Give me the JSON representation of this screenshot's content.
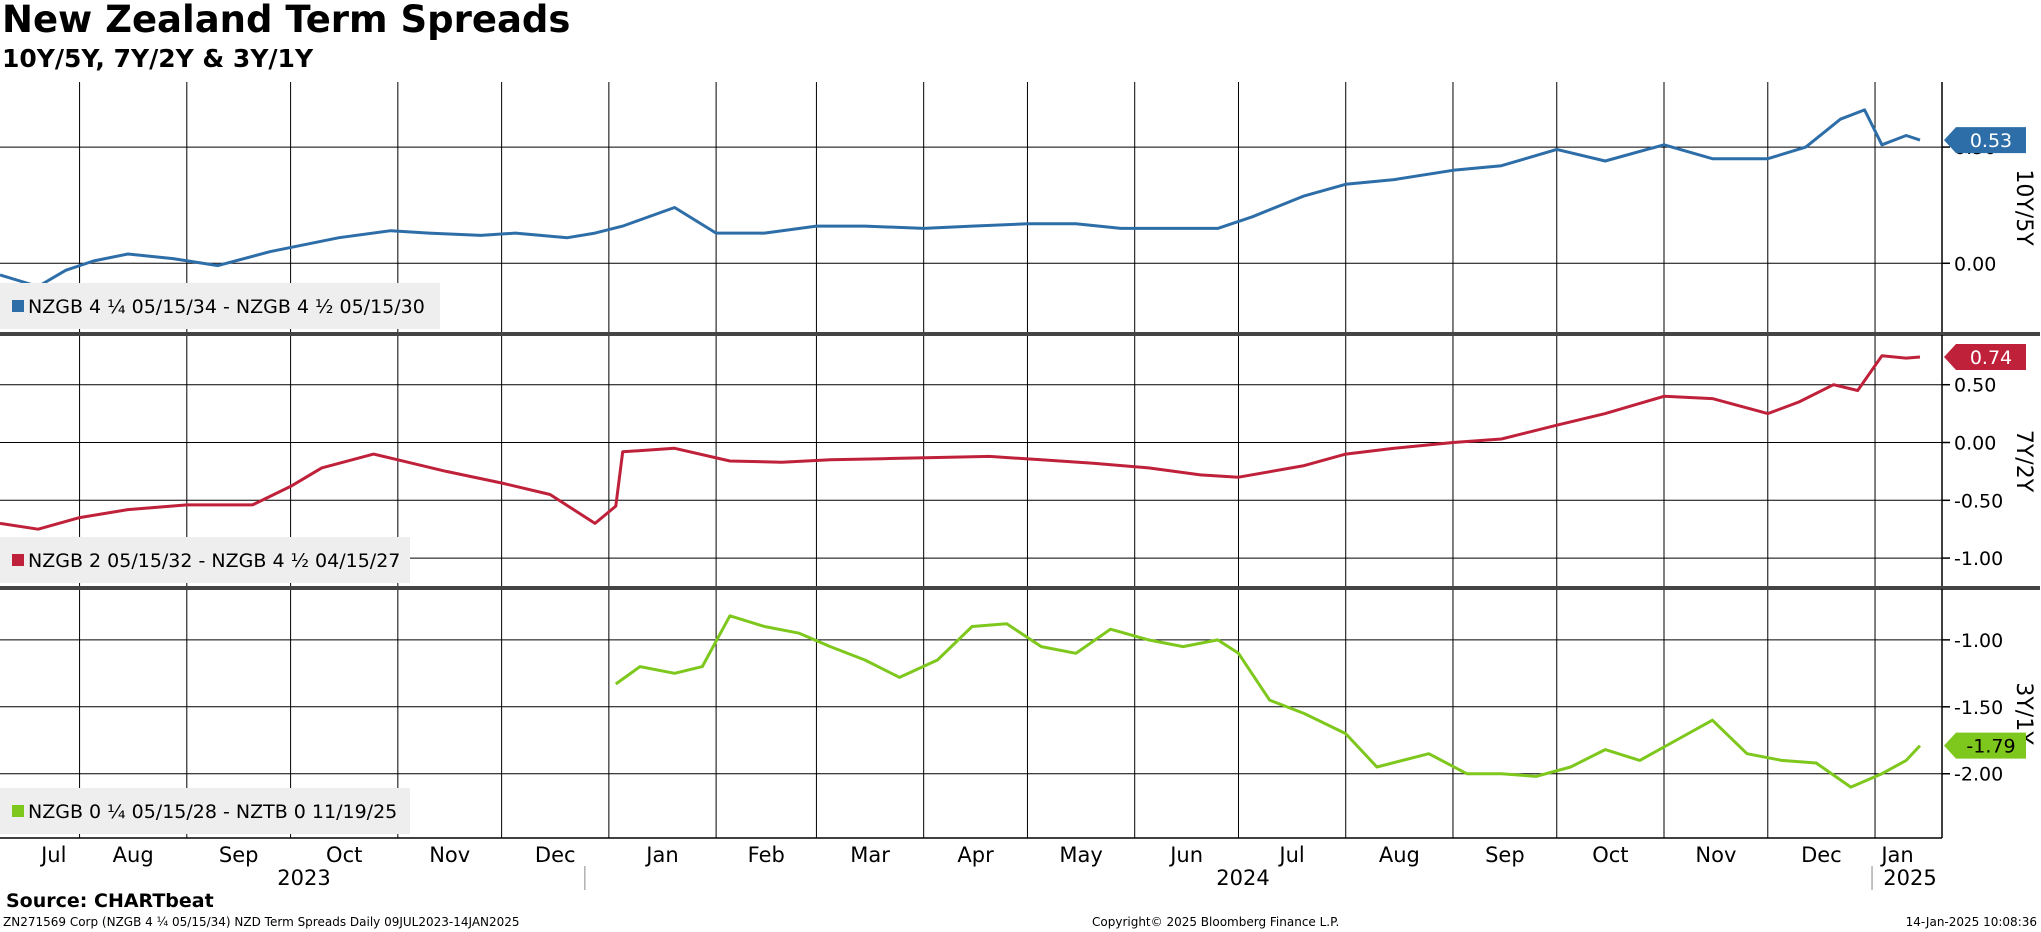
{
  "title": "New Zealand Term Spreads",
  "subtitle": "10Y/5Y, 7Y/2Y & 3Y/1Y",
  "source": "Source: CHARTbeat",
  "footer": {
    "left": "ZN271569 Corp (NZGB 4 ¼ 05/15/34) NZD Term Spreads  Daily 09JUL2023-14JAN2025",
    "center": "Copyright© 2025 Bloomberg Finance L.P.",
    "right": "14-Jan-2025 10:08:36"
  },
  "x_axis": {
    "month_labels": [
      "Jul",
      "Aug",
      "Sep",
      "Oct",
      "Nov",
      "Dec",
      "Jan",
      "Feb",
      "Mar",
      "Apr",
      "May",
      "Jun",
      "Jul",
      "Aug",
      "Sep",
      "Oct",
      "Nov",
      "Dec",
      "Jan"
    ],
    "year_labels": [
      "2023",
      "2024",
      "2025"
    ]
  },
  "chart_data": [
    {
      "type": "line",
      "panel_label": "10Y/5Y",
      "legend": "NZGB 4 ¼ 05/15/34 - NZGB 4 ½ 05/15/30",
      "color": "#2e6ea8",
      "last_value_label": "0.53",
      "y_ticks": [
        "0.00",
        "0.50"
      ],
      "ylim": [
        -0.3,
        0.78
      ],
      "series": [
        {
          "name": "NZGB 4 ¼ 05/15/34 - NZGB 4 ½ 05/15/30",
          "x": [
            "2023-07-09",
            "2023-07-20",
            "2023-07-28",
            "2023-08-05",
            "2023-08-15",
            "2023-08-28",
            "2023-09-10",
            "2023-09-25",
            "2023-10-05",
            "2023-10-15",
            "2023-10-30",
            "2023-11-10",
            "2023-11-25",
            "2023-12-05",
            "2023-12-20",
            "2023-12-28",
            "2024-01-05",
            "2024-01-20",
            "2024-02-01",
            "2024-02-15",
            "2024-03-01",
            "2024-03-15",
            "2024-04-01",
            "2024-04-15",
            "2024-05-01",
            "2024-05-15",
            "2024-05-28",
            "2024-06-10",
            "2024-06-25",
            "2024-07-05",
            "2024-07-20",
            "2024-08-01",
            "2024-08-15",
            "2024-09-01",
            "2024-09-15",
            "2024-10-01",
            "2024-10-15",
            "2024-11-01",
            "2024-11-15",
            "2024-12-01",
            "2024-12-12",
            "2024-12-22",
            "2024-12-29",
            "2025-01-03",
            "2025-01-10",
            "2025-01-14"
          ],
          "values": [
            -0.05,
            -0.1,
            -0.03,
            0.01,
            0.04,
            0.02,
            -0.01,
            0.05,
            0.08,
            0.11,
            0.14,
            0.13,
            0.12,
            0.13,
            0.11,
            0.13,
            0.16,
            0.24,
            0.13,
            0.13,
            0.16,
            0.16,
            0.15,
            0.16,
            0.17,
            0.17,
            0.15,
            0.15,
            0.15,
            0.2,
            0.29,
            0.34,
            0.36,
            0.4,
            0.42,
            0.49,
            0.44,
            0.51,
            0.45,
            0.45,
            0.5,
            0.62,
            0.66,
            0.51,
            0.55,
            0.53
          ]
        }
      ]
    },
    {
      "type": "line",
      "panel_label": "7Y/2Y",
      "legend": "NZGB 2 05/15/32 - NZGB 4 ½ 04/15/27",
      "color": "#c0213a",
      "last_value_label": "0.74",
      "y_ticks": [
        "0.50",
        "0.00",
        "-0.50",
        "-1.00"
      ],
      "ylim": [
        -1.25,
        0.93
      ],
      "series": [
        {
          "name": "NZGB 2 05/15/32 - NZGB 4 ½ 04/15/27",
          "x": [
            "2023-07-09",
            "2023-07-20",
            "2023-08-01",
            "2023-08-15",
            "2023-09-01",
            "2023-09-20",
            "2023-10-01",
            "2023-10-10",
            "2023-10-25",
            "2023-11-01",
            "2023-11-15",
            "2023-12-01",
            "2023-12-15",
            "2023-12-28",
            "2024-01-03",
            "2024-01-05",
            "2024-01-20",
            "2024-02-05",
            "2024-02-20",
            "2024-03-05",
            "2024-03-20",
            "2024-04-05",
            "2024-04-20",
            "2024-05-05",
            "2024-05-20",
            "2024-06-05",
            "2024-06-20",
            "2024-07-01",
            "2024-07-20",
            "2024-08-01",
            "2024-08-15",
            "2024-09-01",
            "2024-09-15",
            "2024-10-01",
            "2024-10-15",
            "2024-11-01",
            "2024-11-15",
            "2024-12-01",
            "2024-12-10",
            "2024-12-20",
            "2024-12-27",
            "2025-01-03",
            "2025-01-10",
            "2025-01-14"
          ],
          "values": [
            -0.7,
            -0.75,
            -0.65,
            -0.58,
            -0.54,
            -0.54,
            -0.38,
            -0.22,
            -0.1,
            -0.15,
            -0.25,
            -0.35,
            -0.45,
            -0.7,
            -0.55,
            -0.08,
            -0.05,
            -0.16,
            -0.17,
            -0.15,
            -0.14,
            -0.13,
            -0.12,
            -0.15,
            -0.18,
            -0.22,
            -0.28,
            -0.3,
            -0.2,
            -0.1,
            -0.05,
            0.0,
            0.03,
            0.15,
            0.25,
            0.4,
            0.38,
            0.25,
            0.35,
            0.5,
            0.45,
            0.75,
            0.73,
            0.74
          ]
        }
      ]
    },
    {
      "type": "line",
      "panel_label": "3Y/1Y",
      "legend": "NZGB 0 ¼ 05/15/28 - NZTB 0 11/19/25",
      "color": "#7ec81e",
      "last_value_label": "-1.79",
      "y_ticks": [
        "-1.00",
        "-1.50",
        "-2.00"
      ],
      "ylim": [
        -2.48,
        -0.62
      ],
      "series": [
        {
          "name": "NZGB 0 ¼ 05/15/28 - NZTB 0 11/19/25",
          "x": [
            "2024-01-03",
            "2024-01-10",
            "2024-01-20",
            "2024-01-28",
            "2024-02-05",
            "2024-02-15",
            "2024-02-25",
            "2024-03-05",
            "2024-03-15",
            "2024-03-25",
            "2024-04-05",
            "2024-04-15",
            "2024-04-25",
            "2024-05-05",
            "2024-05-15",
            "2024-05-25",
            "2024-06-05",
            "2024-06-15",
            "2024-06-25",
            "2024-07-01",
            "2024-07-10",
            "2024-07-20",
            "2024-08-01",
            "2024-08-10",
            "2024-08-25",
            "2024-09-05",
            "2024-09-15",
            "2024-09-25",
            "2024-10-05",
            "2024-10-15",
            "2024-10-25",
            "2024-11-01",
            "2024-11-15",
            "2024-11-25",
            "2024-12-05",
            "2024-12-15",
            "2024-12-25",
            "2025-01-03",
            "2025-01-10",
            "2025-01-14"
          ],
          "values": [
            -1.33,
            -1.2,
            -1.25,
            -1.2,
            -0.82,
            -0.9,
            -0.95,
            -1.05,
            -1.15,
            -1.28,
            -1.15,
            -0.9,
            -0.88,
            -1.05,
            -1.1,
            -0.92,
            -1.0,
            -1.05,
            -1.0,
            -1.1,
            -1.45,
            -1.55,
            -1.7,
            -1.95,
            -1.85,
            -2.0,
            -2.0,
            -2.02,
            -1.95,
            -1.82,
            -1.9,
            -1.8,
            -1.6,
            -1.85,
            -1.9,
            -1.92,
            -2.1,
            -2.0,
            -1.9,
            -1.79
          ]
        }
      ]
    }
  ]
}
